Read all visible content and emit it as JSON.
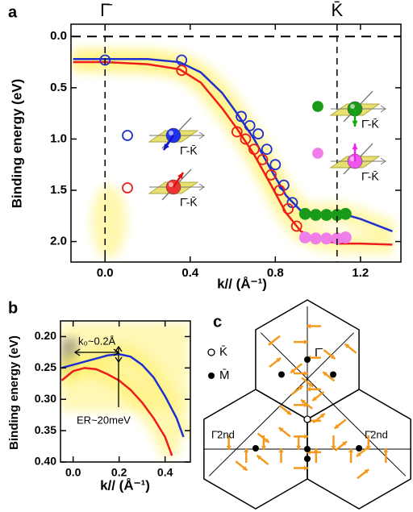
{
  "chart_data": [
    {
      "type": "line",
      "panel": "a",
      "x_label": "k// (Å⁻¹)",
      "y_label": "Binding energy (eV)",
      "xlim": [
        -0.16,
        1.39
      ],
      "ylim": [
        -0.12,
        2.2
      ],
      "invert_y": true,
      "xticks": [
        {
          "value": 0,
          "label": "0.0"
        },
        0.4,
        0.8,
        1.2
      ],
      "yticks": [
        {
          "value": 0,
          "label": "0.0"
        },
        0.5,
        {
          "value": 1,
          "label": "1.0"
        },
        1.5,
        {
          "value": 2,
          "label": "2.0"
        }
      ],
      "vlines": [
        {
          "x": 0,
          "label": "Γ̄"
        },
        {
          "x": 1.09,
          "label": "K̄"
        }
      ],
      "hlines": [
        0
      ],
      "annotations": [
        "Γ̄-K̄",
        "Γ̄-K̄",
        "Γ̄-K̄",
        "Γ̄-K̄"
      ],
      "series": [
        {
          "color": "#1f2fd0",
          "mode": "line",
          "x": [
            -0.15,
            0,
            0.2,
            0.35,
            0.45,
            0.55,
            0.62,
            0.7,
            0.78,
            0.85,
            0.92,
            1.0,
            1.1,
            1.2,
            1.35
          ],
          "values": [
            0.22,
            0.22,
            0.22,
            0.25,
            0.35,
            0.55,
            0.75,
            1.0,
            1.3,
            1.55,
            1.7,
            1.73,
            1.72,
            1.78,
            1.9
          ]
        },
        {
          "color": "#ee1c1c",
          "mode": "line",
          "x": [
            -0.15,
            0,
            0.2,
            0.35,
            0.45,
            0.55,
            0.62,
            0.7,
            0.78,
            0.85,
            0.92,
            1.0,
            1.1,
            1.2,
            1.35
          ],
          "values": [
            0.25,
            0.25,
            0.27,
            0.32,
            0.45,
            0.7,
            0.9,
            1.15,
            1.45,
            1.72,
            1.9,
            1.98,
            2.02,
            2.02,
            2.03
          ]
        },
        {
          "color": "#1f2fd0",
          "mode": "open",
          "x": [
            0,
            0.36,
            0.64,
            0.68,
            0.72,
            0.76,
            0.8,
            0.84,
            0.88
          ],
          "values": [
            0.23,
            0.23,
            0.78,
            0.87,
            0.95,
            1.1,
            1.25,
            1.45,
            1.62
          ]
        },
        {
          "color": "#ee1c1c",
          "mode": "open",
          "x": [
            0.36,
            0.62,
            0.66,
            0.7,
            0.74,
            0.78,
            0.82,
            0.86,
            0.9
          ],
          "values": [
            0.33,
            0.93,
            1.0,
            1.1,
            1.2,
            1.35,
            1.5,
            1.68,
            1.85
          ]
        },
        {
          "color": "#1a9a1a",
          "mode": "filled",
          "x": [
            0.94,
            0.99,
            1.04,
            1.09,
            1.13
          ],
          "values": [
            1.73,
            1.74,
            1.74,
            1.74,
            1.73
          ]
        },
        {
          "color": "#f07ee8",
          "mode": "filled",
          "x": [
            0.94,
            0.99,
            1.04,
            1.09,
            1.13
          ],
          "values": [
            1.96,
            1.97,
            1.97,
            1.97,
            1.96
          ]
        }
      ]
    },
    {
      "type": "line",
      "panel": "b",
      "x_label": "k// (Å⁻¹)",
      "y_label": "Binding energy (eV)",
      "xlim": [
        -0.055,
        0.51
      ],
      "ylim": [
        0.175,
        0.4
      ],
      "invert_y": true,
      "xticks": [
        {
          "value": 0,
          "label": "0.0"
        },
        0.2,
        0.4
      ],
      "yticks": [
        {
          "value": 0.2,
          "label": "0.20"
        },
        0.25,
        {
          "value": 0.3,
          "label": "0.30"
        },
        0.35,
        {
          "value": 0.4,
          "label": "0.40"
        }
      ],
      "annotations": [
        "k₀~0.2Å",
        "ER~20meV"
      ],
      "series": [
        {
          "color": "#1f2fd0",
          "mode": "line",
          "x": [
            -0.05,
            0,
            0.05,
            0.1,
            0.15,
            0.2,
            0.25,
            0.3,
            0.35,
            0.4,
            0.45,
            0.48
          ],
          "values": [
            0.25,
            0.245,
            0.24,
            0.235,
            0.23,
            0.228,
            0.232,
            0.245,
            0.265,
            0.295,
            0.33,
            0.36
          ]
        },
        {
          "color": "#ee1c1c",
          "mode": "line",
          "x": [
            -0.05,
            0,
            0.05,
            0.1,
            0.15,
            0.2,
            0.25,
            0.3,
            0.35,
            0.4,
            0.43
          ],
          "values": [
            0.27,
            0.255,
            0.25,
            0.252,
            0.26,
            0.27,
            0.285,
            0.305,
            0.33,
            0.36,
            0.39
          ]
        }
      ]
    }
  ],
  "panel_c": {
    "panel": "c",
    "legend": [
      "K̄",
      "M̄"
    ],
    "labels": [
      "Γ̄",
      "Γ̄2nd",
      "Γ̄2nd"
    ]
  }
}
